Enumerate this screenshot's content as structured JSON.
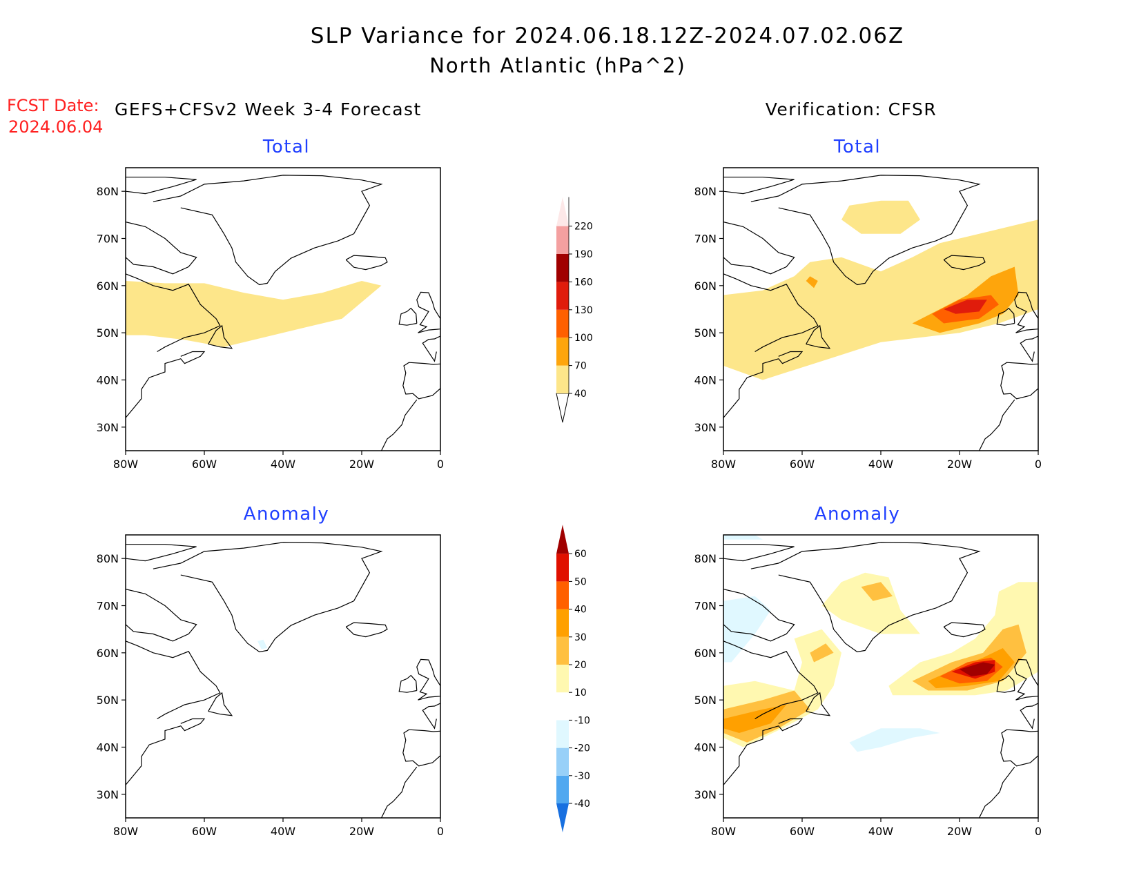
{
  "header": {
    "title_line1": "SLP Variance for 2024.06.18.12Z-2024.07.02.06Z",
    "title_line2": "North Atlantic (hPa^2)",
    "fcst_label": "FCST Date:",
    "fcst_date": "2024.06.04",
    "left_heading": "GEFS+CFSv2 Week 3-4 Forecast",
    "right_heading": "Verification: CFSR"
  },
  "colors": {
    "text": "#000000",
    "fcst": "#ff2020",
    "subtitle": "#1f3fff",
    "c40": "#fde68a",
    "c70": "#fea50c",
    "c100": "#ff6000",
    "c130": "#e01c0c",
    "c160": "#a00000",
    "c190": "#f4a0a0",
    "c220": "#fde8e8",
    "a10": "#fff8b0",
    "a20": "#ffc040",
    "a30": "#ffa000",
    "a40": "#ff6000",
    "a50": "#e01000",
    "a60": "#a00000",
    "an10": "#e0f8ff",
    "an20": "#98d0f8",
    "an30": "#50a8f0",
    "an40": "#1870e0"
  },
  "chart_data": [
    {
      "type": "heatmap",
      "title": "Total",
      "region": "GEFS+CFSv2 Week 3-4 Forecast",
      "xlim": [
        -80,
        0
      ],
      "ylim": [
        25,
        85
      ],
      "x_ticks": [
        "80W",
        "60W",
        "40W",
        "20W",
        "0"
      ],
      "y_ticks": [
        "30N",
        "40N",
        "50N",
        "60N",
        "70N",
        "80N"
      ],
      "shading": [
        {
          "level": 40,
          "polygon_lonlat": [
            [
              -80,
              61
            ],
            [
              -70,
              60.5
            ],
            [
              -60,
              60.5
            ],
            [
              -50,
              58.5
            ],
            [
              -40,
              57
            ],
            [
              -30,
              58.5
            ],
            [
              -20,
              61
            ],
            [
              -15,
              60
            ],
            [
              -25,
              53
            ],
            [
              -35,
              51
            ],
            [
              -45,
              49
            ],
            [
              -55,
              47
            ],
            [
              -65,
              48.5
            ],
            [
              -75,
              49.5
            ],
            [
              -80,
              49.5
            ]
          ]
        }
      ]
    },
    {
      "type": "heatmap",
      "title": "Total",
      "region": "Verification: CFSR",
      "xlim": [
        -80,
        0
      ],
      "ylim": [
        25,
        85
      ],
      "x_ticks": [
        "80W",
        "60W",
        "40W",
        "20W",
        "0"
      ],
      "y_ticks": [
        "30N",
        "40N",
        "50N",
        "60N",
        "70N",
        "80N"
      ],
      "shading": [
        {
          "level": 40,
          "polygon_lonlat": [
            [
              -80,
              58
            ],
            [
              -70,
              59
            ],
            [
              -62,
              62
            ],
            [
              -58,
              65
            ],
            [
              -50,
              66
            ],
            [
              -40,
              63
            ],
            [
              -32,
              66
            ],
            [
              -25,
              69
            ],
            [
              -15,
              71
            ],
            [
              -5,
              73
            ],
            [
              0,
              74
            ],
            [
              0,
              55
            ],
            [
              -10,
              52
            ],
            [
              -20,
              50
            ],
            [
              -30,
              49
            ],
            [
              -40,
              48
            ],
            [
              -55,
              44
            ],
            [
              -70,
              40
            ],
            [
              -80,
              43
            ]
          ]
        },
        {
          "level": 40,
          "polygon_lonlat": [
            [
              -48,
              77
            ],
            [
              -40,
              78
            ],
            [
              -33,
              78
            ],
            [
              -30,
              74
            ],
            [
              -35,
              71
            ],
            [
              -45,
              71
            ],
            [
              -50,
              74
            ]
          ]
        },
        {
          "level": 70,
          "polygon_lonlat": [
            [
              -32,
              52
            ],
            [
              -25,
              55
            ],
            [
              -18,
              58
            ],
            [
              -12,
              62
            ],
            [
              -6,
              64
            ],
            [
              -5,
              58
            ],
            [
              -9,
              54
            ],
            [
              -15,
              52
            ],
            [
              -25,
              50
            ]
          ]
        },
        {
          "level": 70,
          "polygon_lonlat": [
            [
              -58,
              62
            ],
            [
              -56,
              61
            ],
            [
              -57,
              59.5
            ],
            [
              -59,
              61
            ]
          ]
        },
        {
          "level": 100,
          "polygon_lonlat": [
            [
              -27,
              54
            ],
            [
              -20,
              57
            ],
            [
              -12,
              58
            ],
            [
              -10,
              56
            ],
            [
              -15,
              53
            ],
            [
              -24,
              52
            ]
          ]
        },
        {
          "level": 130,
          "polygon_lonlat": [
            [
              -24,
              55
            ],
            [
              -18,
              57
            ],
            [
              -13,
              57
            ],
            [
              -15,
              54.5
            ],
            [
              -21,
              54
            ]
          ]
        }
      ]
    },
    {
      "type": "heatmap",
      "title": "Anomaly",
      "region": "GEFS+CFSv2 Week 3-4 Forecast",
      "xlim": [
        -80,
        0
      ],
      "ylim": [
        25,
        85
      ],
      "x_ticks": [
        "80W",
        "60W",
        "40W",
        "20W",
        "0"
      ],
      "y_ticks": [
        "30N",
        "40N",
        "50N",
        "60N",
        "70N",
        "80N"
      ],
      "shading": [
        {
          "level": -10,
          "polygon_lonlat": [
            [
              -46.5,
              62.5
            ],
            [
              -45,
              62.8
            ],
            [
              -44,
              61
            ],
            [
              -45.5,
              60.8
            ]
          ]
        }
      ]
    },
    {
      "type": "heatmap",
      "title": "Anomaly",
      "region": "Verification: CFSR",
      "xlim": [
        -80,
        0
      ],
      "ylim": [
        25,
        85
      ],
      "x_ticks": [
        "80W",
        "60W",
        "40W",
        "20W",
        "0"
      ],
      "y_ticks": [
        "30N",
        "40N",
        "50N",
        "60N",
        "70N",
        "80N"
      ],
      "shading": [
        {
          "level": 10,
          "polygon_lonlat": [
            [
              -80,
              53
            ],
            [
              -72,
              54
            ],
            [
              -62,
              52
            ],
            [
              -60,
              58
            ],
            [
              -62,
              63
            ],
            [
              -55,
              65
            ],
            [
              -50,
              60
            ],
            [
              -52,
              53
            ],
            [
              -56,
              48
            ],
            [
              -65,
              44
            ],
            [
              -75,
              40
            ],
            [
              -80,
              42
            ]
          ]
        },
        {
          "level": 10,
          "polygon_lonlat": [
            [
              -55,
              70
            ],
            [
              -50,
              75
            ],
            [
              -44,
              77
            ],
            [
              -38,
              76
            ],
            [
              -35,
              69
            ],
            [
              -30,
              64
            ],
            [
              -40,
              64
            ],
            [
              -50,
              67
            ]
          ]
        },
        {
          "level": 10,
          "polygon_lonlat": [
            [
              -38,
              53
            ],
            [
              -30,
              58
            ],
            [
              -22,
              60
            ],
            [
              -16,
              63
            ],
            [
              -11,
              68
            ],
            [
              -10,
              73
            ],
            [
              -5,
              75
            ],
            [
              0,
              75
            ],
            [
              0,
              56
            ],
            [
              -8,
              52
            ],
            [
              -16,
              51
            ],
            [
              -28,
              51
            ],
            [
              -37,
              51
            ]
          ]
        },
        {
          "level": 20,
          "polygon_lonlat": [
            [
              -80,
              48
            ],
            [
              -70,
              50
            ],
            [
              -62,
              52
            ],
            [
              -58,
              48
            ],
            [
              -66,
              44
            ],
            [
              -74,
              41
            ],
            [
              -80,
              43
            ]
          ]
        },
        {
          "level": 20,
          "polygon_lonlat": [
            [
              -58,
              60
            ],
            [
              -54,
              62
            ],
            [
              -52,
              60
            ],
            [
              -57,
              58
            ]
          ]
        },
        {
          "level": 20,
          "polygon_lonlat": [
            [
              -45,
              74
            ],
            [
              -40,
              75
            ],
            [
              -37,
              72
            ],
            [
              -42,
              71
            ]
          ]
        },
        {
          "level": 20,
          "polygon_lonlat": [
            [
              -32,
              54
            ],
            [
              -22,
              58
            ],
            [
              -14,
              60
            ],
            [
              -9,
              65
            ],
            [
              -5,
              66
            ],
            [
              -3,
              60
            ],
            [
              -9,
              54
            ],
            [
              -18,
              52
            ],
            [
              -28,
              52
            ]
          ]
        },
        {
          "level": 30,
          "polygon_lonlat": [
            [
              -28,
              54
            ],
            [
              -20,
              57
            ],
            [
              -14,
              59
            ],
            [
              -9,
              61
            ],
            [
              -6,
              58
            ],
            [
              -10,
              54
            ],
            [
              -18,
              53
            ],
            [
              -26,
              52.5
            ]
          ]
        },
        {
          "level": 30,
          "polygon_lonlat": [
            [
              -80,
              46
            ],
            [
              -70,
              48
            ],
            [
              -64,
              49
            ],
            [
              -68,
              45
            ],
            [
              -76,
              43
            ],
            [
              -80,
              44
            ]
          ]
        },
        {
          "level": 40,
          "polygon_lonlat": [
            [
              -25,
              55
            ],
            [
              -18,
              58
            ],
            [
              -12,
              59
            ],
            [
              -9,
              57
            ],
            [
              -13,
              54
            ],
            [
              -20,
              53.5
            ]
          ]
        },
        {
          "level": 50,
          "polygon_lonlat": [
            [
              -22,
              56
            ],
            [
              -16,
              58
            ],
            [
              -11,
              58.5
            ],
            [
              -11,
              56
            ],
            [
              -16,
              54.5
            ]
          ]
        },
        {
          "level": 60,
          "polygon_lonlat": [
            [
              -20,
              56.5
            ],
            [
              -14,
              58
            ],
            [
              -11,
              57.5
            ],
            [
              -13,
              55.5
            ],
            [
              -17,
              55
            ]
          ]
        },
        {
          "level": -10,
          "polygon_lonlat": [
            [
              -80,
              71
            ],
            [
              -72,
              72
            ],
            [
              -68,
              69
            ],
            [
              -72,
              64
            ],
            [
              -78,
              58
            ],
            [
              -80,
              58
            ]
          ]
        },
        {
          "level": -10,
          "polygon_lonlat": [
            [
              -80,
              84
            ],
            [
              -70,
              84
            ],
            [
              -72,
              85
            ],
            [
              -80,
              85
            ]
          ]
        },
        {
          "level": -10,
          "polygon_lonlat": [
            [
              -48,
              41
            ],
            [
              -40,
              44
            ],
            [
              -30,
              44
            ],
            [
              -25,
              43
            ],
            [
              -32,
              42
            ],
            [
              -40,
              40
            ],
            [
              -46,
              39
            ]
          ]
        }
      ]
    }
  ],
  "colorbars": {
    "total": {
      "labels": [
        "40",
        "70",
        "100",
        "130",
        "160",
        "190",
        "220"
      ]
    },
    "anomaly": {
      "labels": [
        "-40",
        "-30",
        "-20",
        "-10",
        "10",
        "20",
        "30",
        "40",
        "50",
        "60"
      ]
    }
  }
}
